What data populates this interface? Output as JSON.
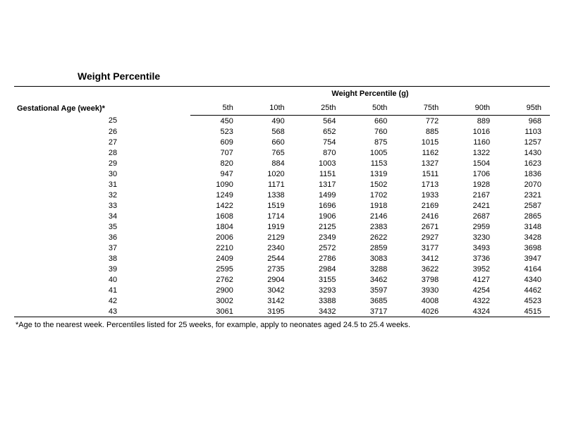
{
  "title": "Weight Percentile",
  "group_header": "Weight Percentile (g)",
  "row_header": "Gestational Age (week)*",
  "columns": [
    "5th",
    "10th",
    "25th",
    "50th",
    "75th",
    "90th",
    "95th"
  ],
  "rows": [
    {
      "age": "25",
      "vals": [
        "450",
        "490",
        "564",
        "660",
        "772",
        "889",
        "968"
      ]
    },
    {
      "age": "26",
      "vals": [
        "523",
        "568",
        "652",
        "760",
        "885",
        "1016",
        "1103"
      ]
    },
    {
      "age": "27",
      "vals": [
        "609",
        "660",
        "754",
        "875",
        "1015",
        "1160",
        "1257"
      ]
    },
    {
      "age": "28",
      "vals": [
        "707",
        "765",
        "870",
        "1005",
        "1162",
        "1322",
        "1430"
      ]
    },
    {
      "age": "29",
      "vals": [
        "820",
        "884",
        "1003",
        "1153",
        "1327",
        "1504",
        "1623"
      ]
    },
    {
      "age": "30",
      "vals": [
        "947",
        "1020",
        "1151",
        "1319",
        "1511",
        "1706",
        "1836"
      ]
    },
    {
      "age": "31",
      "vals": [
        "1090",
        "1171",
        "1317",
        "1502",
        "1713",
        "1928",
        "2070"
      ]
    },
    {
      "age": "32",
      "vals": [
        "1249",
        "1338",
        "1499",
        "1702",
        "1933",
        "2167",
        "2321"
      ]
    },
    {
      "age": "33",
      "vals": [
        "1422",
        "1519",
        "1696",
        "1918",
        "2169",
        "2421",
        "2587"
      ]
    },
    {
      "age": "34",
      "vals": [
        "1608",
        "1714",
        "1906",
        "2146",
        "2416",
        "2687",
        "2865"
      ]
    },
    {
      "age": "35",
      "vals": [
        "1804",
        "1919",
        "2125",
        "2383",
        "2671",
        "2959",
        "3148"
      ]
    },
    {
      "age": "36",
      "vals": [
        "2006",
        "2129",
        "2349",
        "2622",
        "2927",
        "3230",
        "3428"
      ]
    },
    {
      "age": "37",
      "vals": [
        "2210",
        "2340",
        "2572",
        "2859",
        "3177",
        "3493",
        "3698"
      ]
    },
    {
      "age": "38",
      "vals": [
        "2409",
        "2544",
        "2786",
        "3083",
        "3412",
        "3736",
        "3947"
      ]
    },
    {
      "age": "39",
      "vals": [
        "2595",
        "2735",
        "2984",
        "3288",
        "3622",
        "3952",
        "4164"
      ]
    },
    {
      "age": "40",
      "vals": [
        "2762",
        "2904",
        "3155",
        "3462",
        "3798",
        "4127",
        "4340"
      ]
    },
    {
      "age": "41",
      "vals": [
        "2900",
        "3042",
        "3293",
        "3597",
        "3930",
        "4254",
        "4462"
      ]
    },
    {
      "age": "42",
      "vals": [
        "3002",
        "3142",
        "3388",
        "3685",
        "4008",
        "4322",
        "4523"
      ]
    },
    {
      "age": "43",
      "vals": [
        "3061",
        "3195",
        "3432",
        "3717",
        "4026",
        "4324",
        "4515"
      ]
    }
  ],
  "footnote": "*Age to the nearest week. Percentiles listed for 25 weeks, for example, apply to neonates aged 24.5 to 25.4 weeks.",
  "style": {
    "type": "table",
    "background_color": "#ffffff",
    "text_color": "#000000",
    "rule_color": "#000000",
    "title_fontsize": 14,
    "body_fontsize": 11,
    "footnote_fontsize": 11,
    "col_count": 8,
    "row_count": 19
  }
}
